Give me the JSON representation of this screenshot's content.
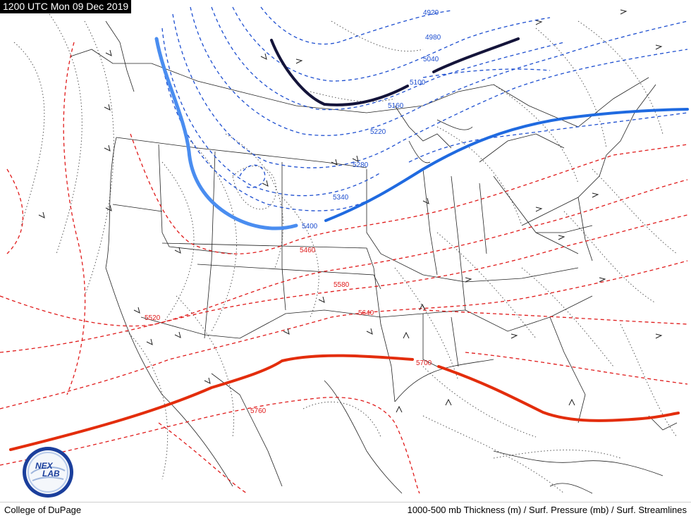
{
  "header": {
    "valid_time": "1200 UTC Mon 09 Dec 2019"
  },
  "footer": {
    "credit": "College of DuPage",
    "product": "1000-500 mb Thickness (m) / Surf. Pressure (mb) / Surf. Streamlines"
  },
  "logo": {
    "text_top": "NEX",
    "text_bottom": "LAB"
  },
  "thickness_labels": {
    "t4920": "4920",
    "t4980": "4980",
    "t5040": "5040",
    "t5100": "5100",
    "t5160": "5160",
    "t5220": "5220",
    "t5280": "5280",
    "t5340": "5340",
    "t5400": "5400",
    "t5460": "5460",
    "t5520": "5520",
    "t5580": "5580",
    "t5640": "5640",
    "t5700": "5700",
    "t5760": "5760"
  },
  "colors": {
    "cold_contours": "#1e4fd0",
    "warm_contours": "#e01b1b",
    "line_5400": "#3a7be0",
    "line_5700": "#e32d0c",
    "line_5100": "#14143a"
  }
}
